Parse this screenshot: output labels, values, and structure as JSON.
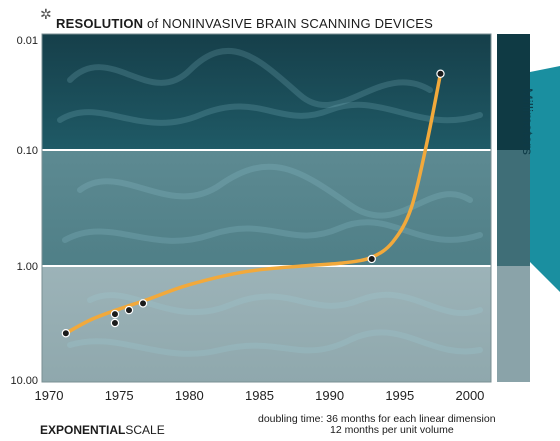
{
  "chart_data": {
    "type": "line",
    "title_strong": "RESOLUTION",
    "title_rest": "of NONINVASIVE BRAIN SCANNING DEVICES",
    "xlabel": "",
    "ylabel": "",
    "units_label": "Millimeters",
    "scale_label_strong": "EXPONENTIAL",
    "scale_label_rest": "SCALE",
    "footnote_line1": "doubling time: 36 months for each linear dimension",
    "footnote_line2": "12 months per unit volume",
    "x_ticks": [
      "1970",
      "1975",
      "1980",
      "1985",
      "1990",
      "1995",
      "2000"
    ],
    "y_ticks": [
      "0.01",
      "0.10",
      "1.00",
      "10.00"
    ],
    "xlim": [
      1969.5,
      2001.5
    ],
    "ylim": [
      0.01,
      10
    ],
    "y_scale": "log",
    "y_inverted": true,
    "grid": false,
    "points": [
      {
        "x": 1971.2,
        "y": 3.8
      },
      {
        "x": 1974.7,
        "y": 2.6
      },
      {
        "x": 1974.7,
        "y": 3.1
      },
      {
        "x": 1975.7,
        "y": 2.4
      },
      {
        "x": 1976.7,
        "y": 2.1
      },
      {
        "x": 1993.0,
        "y": 0.87
      },
      {
        "x": 1997.9,
        "y": 0.022
      }
    ],
    "curve": [
      {
        "x": 1971.2,
        "y": 3.8
      },
      {
        "x": 1973.0,
        "y": 2.9
      },
      {
        "x": 1975.0,
        "y": 2.35
      },
      {
        "x": 1977.0,
        "y": 1.95
      },
      {
        "x": 1980.0,
        "y": 1.45
      },
      {
        "x": 1984.0,
        "y": 1.12
      },
      {
        "x": 1988.0,
        "y": 1.0
      },
      {
        "x": 1991.0,
        "y": 0.94
      },
      {
        "x": 1993.0,
        "y": 0.84
      },
      {
        "x": 1994.5,
        "y": 0.62
      },
      {
        "x": 1995.8,
        "y": 0.32
      },
      {
        "x": 1996.9,
        "y": 0.09
      },
      {
        "x": 1997.9,
        "y": 0.022
      }
    ],
    "colors": {
      "curve": "#f2a93b",
      "band_top": "#1f5a66",
      "band_mid": "#4f7f87",
      "band_bottom": "#8fa8ad",
      "side_dark": "#0f3a44",
      "side_mid": "#3f6e77",
      "side_light": "#8aa3a9",
      "tab": "#1a8fa0"
    }
  }
}
